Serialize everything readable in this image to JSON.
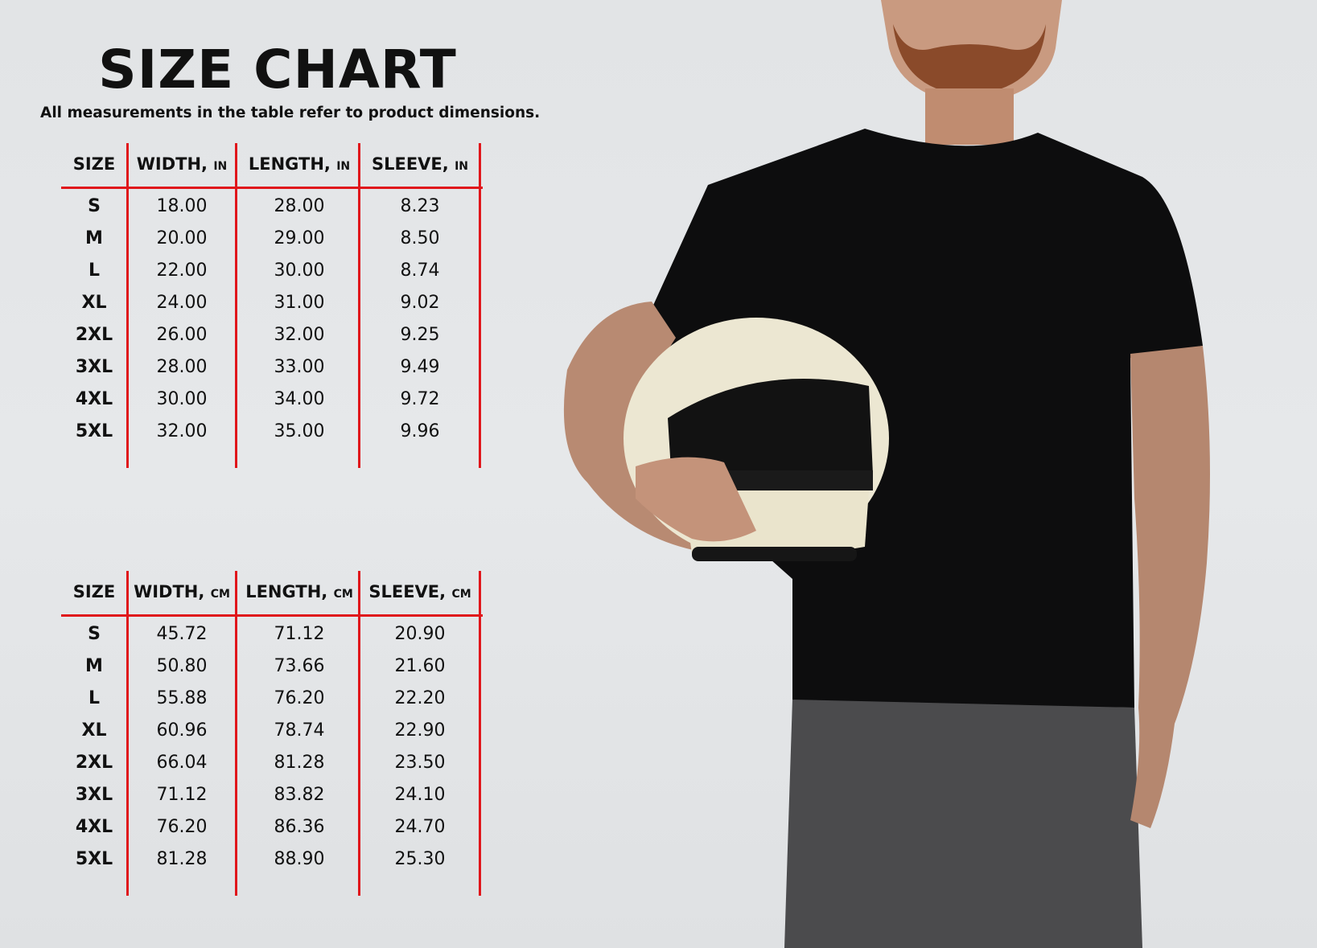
{
  "title": "SIZE CHART",
  "subtitle": "All measurements in the table refer to product dimensions.",
  "tables": [
    {
      "headers": [
        {
          "label": "SIZE",
          "unit": ""
        },
        {
          "label": "WIDTH,",
          "unit": "IN"
        },
        {
          "label": "LENGTH,",
          "unit": "IN"
        },
        {
          "label": "SLEEVE,",
          "unit": "IN"
        }
      ],
      "rows": [
        [
          "S",
          "18.00",
          "28.00",
          "8.23"
        ],
        [
          "M",
          "20.00",
          "29.00",
          "8.50"
        ],
        [
          "L",
          "22.00",
          "30.00",
          "8.74"
        ],
        [
          "XL",
          "24.00",
          "31.00",
          "9.02"
        ],
        [
          "2XL",
          "26.00",
          "32.00",
          "9.25"
        ],
        [
          "3XL",
          "28.00",
          "33.00",
          "9.49"
        ],
        [
          "4XL",
          "30.00",
          "34.00",
          "9.72"
        ],
        [
          "5XL",
          "32.00",
          "35.00",
          "9.96"
        ]
      ]
    },
    {
      "headers": [
        {
          "label": "SIZE",
          "unit": ""
        },
        {
          "label": "WIDTH,",
          "unit": "CM"
        },
        {
          "label": "LENGTH,",
          "unit": "CM"
        },
        {
          "label": "SLEEVE,",
          "unit": "CM"
        }
      ],
      "rows": [
        [
          "S",
          "45.72",
          "71.12",
          "20.90"
        ],
        [
          "M",
          "50.80",
          "73.66",
          "21.60"
        ],
        [
          "L",
          "55.88",
          "76.20",
          "22.20"
        ],
        [
          "XL",
          "60.96",
          "78.74",
          "22.90"
        ],
        [
          "2XL",
          "66.04",
          "81.28",
          "23.50"
        ],
        [
          "3XL",
          "71.12",
          "83.82",
          "24.10"
        ],
        [
          "4XL",
          "76.20",
          "86.36",
          "24.70"
        ],
        [
          "5XL",
          "81.28",
          "88.90",
          "25.30"
        ]
      ]
    }
  ],
  "colors": {
    "grid": "#e0161b",
    "text": "#111111",
    "background": "#e4e6e8"
  }
}
